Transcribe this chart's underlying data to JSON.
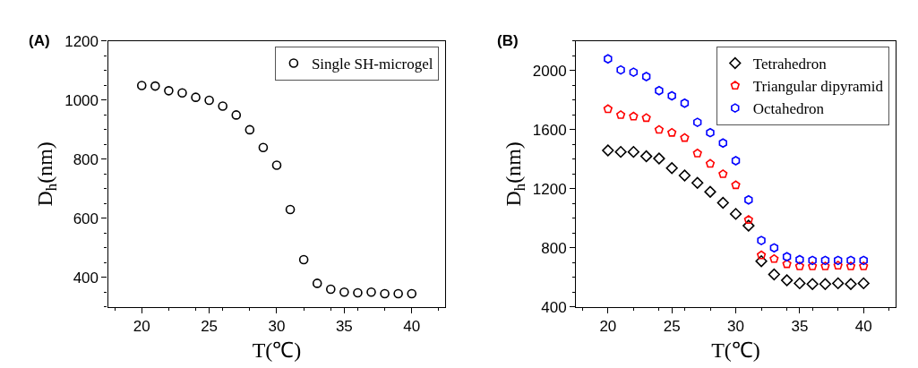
{
  "chart_data": [
    {
      "type": "scatter",
      "title": "(A)",
      "xlabel": "T(℃)",
      "ylabel": "D$_{h}$(nm)",
      "x": [
        20,
        21,
        22,
        23,
        24,
        25,
        26,
        27,
        28,
        29,
        30,
        31,
        32,
        33,
        34,
        35,
        36,
        37,
        38,
        39,
        40
      ],
      "series": [
        {
          "name": "Single SH-microgel",
          "color": "#000000",
          "marker": "circle",
          "values": [
            1050,
            1048,
            1032,
            1025,
            1010,
            1000,
            980,
            950,
            900,
            840,
            780,
            630,
            460,
            380,
            360,
            350,
            348,
            350,
            345,
            345,
            345
          ]
        }
      ],
      "xlim": [
        17.5,
        42.5
      ],
      "xticks": [
        20,
        25,
        30,
        35,
        40
      ],
      "ylim": [
        300,
        1200
      ],
      "yticks": [
        400,
        600,
        800,
        1000,
        1200
      ],
      "legend": "top right"
    },
    {
      "type": "scatter",
      "title": "(B)",
      "xlabel": "T(℃)",
      "ylabel": "D$_{h}$(nm)",
      "x": [
        20,
        21,
        22,
        23,
        24,
        25,
        26,
        27,
        28,
        29,
        30,
        31,
        32,
        33,
        34,
        35,
        36,
        37,
        38,
        39,
        40
      ],
      "series": [
        {
          "name": "Tetrahedron",
          "color": "#000000",
          "marker": "diamond",
          "values": [
            1460,
            1450,
            1450,
            1420,
            1405,
            1340,
            1290,
            1240,
            1180,
            1105,
            1030,
            950,
            710,
            620,
            580,
            560,
            555,
            555,
            560,
            555,
            560
          ]
        },
        {
          "name": "Triangular dipyramid",
          "color": "#ff0000",
          "values": [
            1740,
            1700,
            1690,
            1680,
            1600,
            1580,
            1545,
            1440,
            1370,
            1300,
            1225,
            990,
            750,
            725,
            690,
            675,
            675,
            675,
            680,
            675,
            675
          ]
        },
        {
          "name": "Octahedron",
          "color": "#0000ff",
          "values": [
            2080,
            2005,
            1990,
            1960,
            1865,
            1830,
            1780,
            1650,
            1580,
            1510,
            1390,
            1125,
            850,
            800,
            740,
            720,
            715,
            715,
            715,
            715,
            715
          ]
        }
      ],
      "xlim": [
        17.5,
        42.5
      ],
      "xticks": [
        20,
        25,
        30,
        35,
        40
      ],
      "ylim": [
        400,
        2200
      ],
      "yticks": [
        400,
        800,
        1200,
        1600,
        2000
      ],
      "legend": "top right"
    }
  ]
}
